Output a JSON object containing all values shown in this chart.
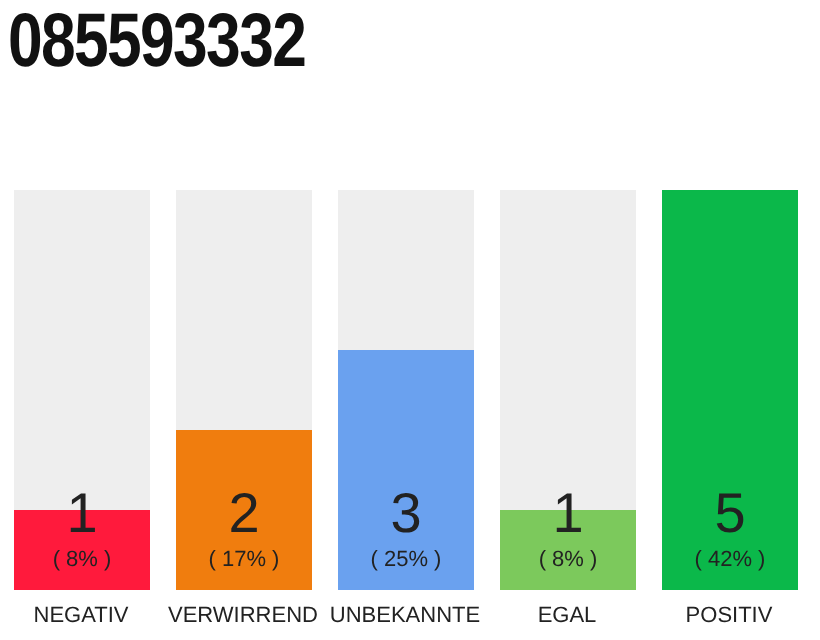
{
  "chart_data": {
    "type": "bar",
    "title": "085593332",
    "categories": [
      "NEGATIV",
      "VERWIRREND",
      "UNBEKANNTE",
      "EGAL",
      "POSITIV"
    ],
    "values": [
      1,
      2,
      3,
      1,
      5
    ],
    "colors": [
      "#ff1a3c",
      "#f07d0e",
      "#6aa1ef",
      "#7cc95c",
      "#0bb84a"
    ],
    "data_labels": true,
    "annotations": [
      "( 8% )",
      "( 17% )",
      "( 25% )",
      "( 8% )",
      "( 42% )"
    ]
  }
}
